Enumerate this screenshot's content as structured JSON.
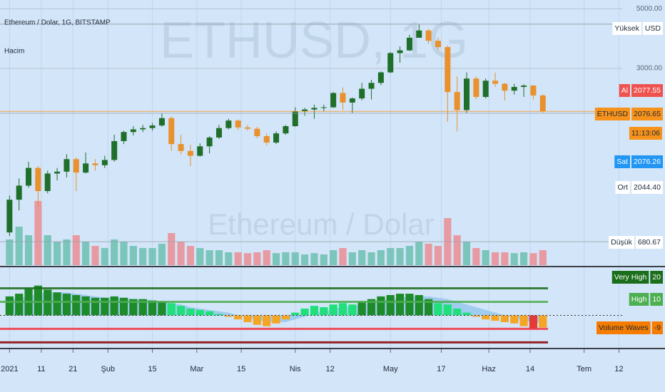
{
  "header": {
    "symbol_title": "Ethereum / Dolar, 1G, BITSTAMP",
    "volume_label": "Hacim",
    "watermark": "ETHUSD, 1G",
    "watermark_sub": "Ethereum / Dolar",
    "countdown": "11:13:06"
  },
  "chart_data": [
    {
      "type": "candlestick",
      "log_scale": true,
      "grid": true,
      "x": [
        "2021-01-01",
        "2021-01-04",
        "2021-01-07",
        "2021-01-10",
        "2021-01-13",
        "2021-01-16",
        "2021-01-19",
        "2021-01-22",
        "2021-01-25",
        "2021-01-28",
        "2021-01-31",
        "2021-02-03",
        "2021-02-06",
        "2021-02-09",
        "2021-02-12",
        "2021-02-15",
        "2021-02-18",
        "2021-02-21",
        "2021-02-24",
        "2021-02-27",
        "2021-03-02",
        "2021-03-05",
        "2021-03-08",
        "2021-03-11",
        "2021-03-14",
        "2021-03-17",
        "2021-03-20",
        "2021-03-23",
        "2021-03-26",
        "2021-03-29",
        "2021-04-01",
        "2021-04-04",
        "2021-04-07",
        "2021-04-10",
        "2021-04-13",
        "2021-04-16",
        "2021-04-19",
        "2021-04-22",
        "2021-04-25",
        "2021-04-28",
        "2021-05-01",
        "2021-05-04",
        "2021-05-07",
        "2021-05-10",
        "2021-05-13",
        "2021-05-16",
        "2021-05-19",
        "2021-05-22",
        "2021-05-25",
        "2021-05-28",
        "2021-05-31",
        "2021-06-03",
        "2021-06-06",
        "2021-06-09",
        "2021-06-12",
        "2021-06-15",
        "2021-06-18"
      ],
      "open": [
        737,
        975,
        1100,
        1280,
        1050,
        1220,
        1240,
        1380,
        1230,
        1330,
        1310,
        1370,
        1610,
        1740,
        1780,
        1800,
        1840,
        1960,
        1570,
        1480,
        1420,
        1540,
        1660,
        1800,
        1920,
        1810,
        1790,
        1680,
        1590,
        1720,
        1830,
        2080,
        2110,
        2140,
        2150,
        2430,
        2240,
        2320,
        2520,
        2650,
        2900,
        3420,
        3500,
        3900,
        4150,
        3800,
        3600,
        2450,
        2100,
        2750,
        2350,
        2700,
        2630,
        2480,
        2560,
        2590,
        2380
      ],
      "high": [
        1010,
        1170,
        1350,
        1300,
        1250,
        1280,
        1440,
        1400,
        1460,
        1380,
        1420,
        1700,
        1760,
        1830,
        1850,
        1880,
        2040,
        1990,
        1700,
        1560,
        1580,
        1680,
        1850,
        1950,
        1940,
        1850,
        1820,
        1720,
        1750,
        1850,
        2150,
        2140,
        2200,
        2200,
        2450,
        2550,
        2340,
        2650,
        2720,
        2920,
        3450,
        3620,
        4000,
        4380,
        4200,
        3900,
        3650,
        2800,
        2900,
        2800,
        2750,
        2890,
        2650,
        2630,
        2620,
        2600,
        2400
      ],
      "low": [
        715,
        890,
        1080,
        920,
        1030,
        1150,
        1180,
        1050,
        1220,
        1250,
        1280,
        1350,
        1570,
        1690,
        1740,
        1760,
        1820,
        1480,
        1440,
        1300,
        1410,
        1450,
        1640,
        1780,
        1770,
        1760,
        1650,
        1550,
        1570,
        1700,
        1820,
        2000,
        1950,
        2080,
        2140,
        2100,
        2050,
        2280,
        2300,
        2600,
        2880,
        3150,
        3480,
        3900,
        3700,
        3500,
        1900,
        1750,
        2050,
        2300,
        2320,
        2560,
        2280,
        2400,
        2350,
        2300,
        2050
      ],
      "close": [
        975,
        1100,
        1280,
        1050,
        1220,
        1240,
        1380,
        1230,
        1330,
        1310,
        1370,
        1610,
        1740,
        1780,
        1800,
        1840,
        1960,
        1570,
        1480,
        1420,
        1540,
        1660,
        1800,
        1920,
        1810,
        1790,
        1680,
        1590,
        1720,
        1830,
        2080,
        2110,
        2140,
        2150,
        2430,
        2240,
        2320,
        2520,
        2650,
        2900,
        3420,
        3500,
        3900,
        4150,
        3800,
        3600,
        2450,
        2100,
        2750,
        2350,
        2700,
        2630,
        2480,
        2560,
        2590,
        2380,
        2076.65
      ],
      "volume": [
        60,
        90,
        70,
        150,
        70,
        55,
        60,
        70,
        55,
        45,
        40,
        60,
        55,
        45,
        40,
        40,
        50,
        75,
        55,
        45,
        40,
        35,
        35,
        30,
        30,
        28,
        30,
        35,
        28,
        30,
        30,
        25,
        28,
        25,
        35,
        40,
        30,
        35,
        30,
        35,
        40,
        40,
        45,
        55,
        50,
        45,
        110,
        70,
        55,
        40,
        35,
        30,
        30,
        28,
        30,
        28,
        35
      ],
      "up_color": "#1f6f2b",
      "down_color": "#e8912d",
      "volume_up_color": "#6bbfb0",
      "volume_down_color": "#eb8d93",
      "xlim": [
        "2020-12-29",
        "2021-07-13"
      ],
      "xticks": [
        {
          "value": "2021-01-01",
          "label": "2021"
        },
        {
          "value": "2021-01-11",
          "label": "11"
        },
        {
          "value": "2021-01-21",
          "label": "21"
        },
        {
          "value": "2021-02-01",
          "label": "Şub"
        },
        {
          "value": "2021-02-15",
          "label": "15"
        },
        {
          "value": "2021-03-01",
          "label": "Mar"
        },
        {
          "value": "2021-03-15",
          "label": "15"
        },
        {
          "value": "2021-04-01",
          "label": "Nis"
        },
        {
          "value": "2021-04-12",
          "label": "12"
        },
        {
          "value": "2021-05-01",
          "label": "May"
        },
        {
          "value": "2021-05-17",
          "label": "17"
        },
        {
          "value": "2021-06-01",
          "label": "Haz"
        },
        {
          "value": "2021-06-14",
          "label": "14"
        },
        {
          "value": "2021-07-01",
          "label": "Tem"
        },
        {
          "value": "2021-07-12",
          "label": "12"
        }
      ],
      "ylim": [
        557,
        5387
      ],
      "yticks": [
        {
          "value": 5000,
          "label": "5000.00"
        },
        {
          "value": 3000,
          "label": "3000.00"
        }
      ],
      "price_labels": [
        {
          "label": "Yüksek",
          "value_label": "USD",
          "color": "#ffffff",
          "text_color": "#1e2a3a"
        },
        {
          "label": "Al",
          "value": 2077.55,
          "color": "#ef5350",
          "text_color": "#ffffff"
        },
        {
          "label": "ETHUSD",
          "value": 2076.65,
          "color": "#f7931a",
          "text_color": "#1e2a3a"
        },
        {
          "label": "Sat",
          "value": 2076.26,
          "color": "#2196f3",
          "text_color": "#ffffff"
        },
        {
          "label": "Ort",
          "value": 2044.4,
          "value_label": "2044.40",
          "color": "#ffffff",
          "text_color": "#1e2a3a"
        },
        {
          "label": "Düşük",
          "value": 680.67,
          "color": "#ffffff",
          "text_color": "#1e2a3a"
        }
      ]
    },
    {
      "type": "bar",
      "series": [
        {
          "name": "Volume Waves",
          "color": "#f57c00",
          "values": [
            14,
            16,
            20,
            22,
            19,
            17,
            16,
            15,
            14,
            13,
            13,
            14,
            13,
            12,
            12,
            11,
            10,
            9,
            7,
            5,
            4,
            3,
            1,
            -1,
            -3,
            -5,
            -7,
            -8,
            -6,
            -3,
            2,
            5,
            7,
            6,
            8,
            9,
            8,
            10,
            12,
            14,
            15,
            16,
            16,
            15,
            12,
            9,
            8,
            5,
            2,
            -1,
            -3,
            -4,
            -5,
            -6,
            -8,
            -10,
            -9
          ]
        },
        {
          "color": "#8fc3ee",
          "values": [
            12,
            13,
            14,
            16,
            17,
            17,
            17,
            16,
            15,
            14,
            13,
            13,
            13,
            12,
            12,
            11,
            10,
            9,
            8,
            6,
            5,
            4,
            3,
            2,
            0,
            -2,
            -3,
            -5,
            -5,
            -5,
            -3,
            -1,
            2,
            3,
            5,
            6,
            7,
            8,
            9,
            11,
            12,
            13,
            14,
            14,
            14,
            13,
            12,
            10,
            8,
            6,
            4,
            2,
            0,
            -2,
            -4,
            -5,
            -6
          ]
        }
      ],
      "colors": {
        "strong_up": "#1e8b2a",
        "up": "#1fe07a",
        "down": "#f5a524",
        "strong_down": "#e53935"
      },
      "levels": [
        {
          "name": "Very High",
          "value": 20,
          "color": "#1b6e1b"
        },
        {
          "name": "High",
          "value": 10,
          "color": "#4caf50"
        },
        {
          "value": -10,
          "color": "#f23645"
        },
        {
          "value": -20,
          "color": "#8b0000"
        }
      ],
      "ylim": [
        -24,
        35
      ]
    }
  ]
}
